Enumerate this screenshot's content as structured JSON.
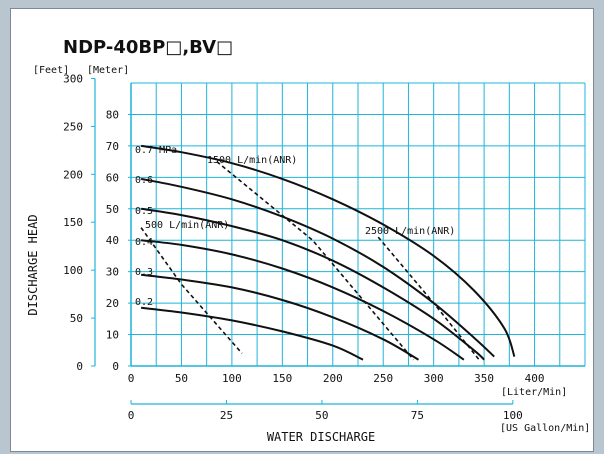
{
  "chart_data": {
    "type": "line",
    "title": "NDP-40BP□,BV□",
    "xlabel": "WATER  DISCHARGE",
    "ylabel": "DISCHARGE  HEAD",
    "x_unit_primary": "[Liter/Min]",
    "x_unit_secondary": "[US Gallon/Min]",
    "y_unit_left": "[Feet]",
    "y_unit_right": "[Meter]",
    "xlim": [
      0,
      450
    ],
    "ylim_meter": [
      0,
      90
    ],
    "x_ticks_liter": [
      0,
      50,
      100,
      150,
      200,
      250,
      300,
      350,
      400
    ],
    "x_ticks_gallon": [
      0,
      25,
      50,
      75,
      100
    ],
    "y_ticks_meter": [
      0,
      10,
      20,
      30,
      40,
      50,
      60,
      70,
      80
    ],
    "y_ticks_feet": [
      0,
      50,
      100,
      150,
      200,
      250,
      300
    ],
    "grid": true,
    "grid_color": "#1fb4d9",
    "series": [
      {
        "name": "0.7 MPa",
        "label": "0.7 MPa",
        "style": "solid",
        "x": [
          10,
          50,
          100,
          150,
          200,
          250,
          300,
          340,
          370,
          380
        ],
        "y": [
          70,
          68,
          64.5,
          59.5,
          53,
          45,
          35,
          24,
          12,
          3
        ]
      },
      {
        "name": "0.6",
        "label": "0.6",
        "style": "solid",
        "x": [
          10,
          50,
          100,
          150,
          200,
          250,
          300,
          340,
          360
        ],
        "y": [
          59.5,
          57,
          53,
          47.5,
          40.5,
          31.5,
          20,
          9,
          3
        ]
      },
      {
        "name": "0.5",
        "label": "0.5",
        "style": "solid",
        "x": [
          10,
          50,
          100,
          150,
          200,
          250,
          300,
          340,
          350
        ],
        "y": [
          50,
          48,
          44.5,
          40,
          33.5,
          25,
          15,
          5,
          2
        ]
      },
      {
        "name": "0.4",
        "label": "0.4",
        "style": "solid",
        "x": [
          10,
          50,
          100,
          150,
          200,
          250,
          300,
          330
        ],
        "y": [
          40,
          38.5,
          35.5,
          31,
          25,
          17.5,
          8.5,
          2
        ]
      },
      {
        "name": "0.3",
        "label": "0.3",
        "style": "solid",
        "x": [
          10,
          50,
          100,
          150,
          200,
          250,
          285
        ],
        "y": [
          29,
          27.5,
          25,
          21,
          15.5,
          8.5,
          2
        ]
      },
      {
        "name": "0.2",
        "label": "0.2",
        "style": "solid",
        "x": [
          10,
          50,
          100,
          150,
          200,
          230
        ],
        "y": [
          18.5,
          17,
          14.5,
          11,
          6.5,
          2
        ]
      },
      {
        "name": "500 L/min(ANR)",
        "label": "500 L/min(ANR)",
        "style": "dashed",
        "x": [
          10,
          50,
          110
        ],
        "y": [
          44,
          26,
          4
        ]
      },
      {
        "name": "1500 L/min(ANR)",
        "label": "1500 L/min(ANR)",
        "style": "dashed",
        "x": [
          85,
          180,
          280
        ],
        "y": [
          65,
          40,
          2
        ]
      },
      {
        "name": "2500 L/min(ANR)",
        "label": "2500 L/min(ANR)",
        "style": "dashed",
        "x": [
          245,
          300,
          345
        ],
        "y": [
          41,
          20,
          2
        ]
      }
    ]
  }
}
